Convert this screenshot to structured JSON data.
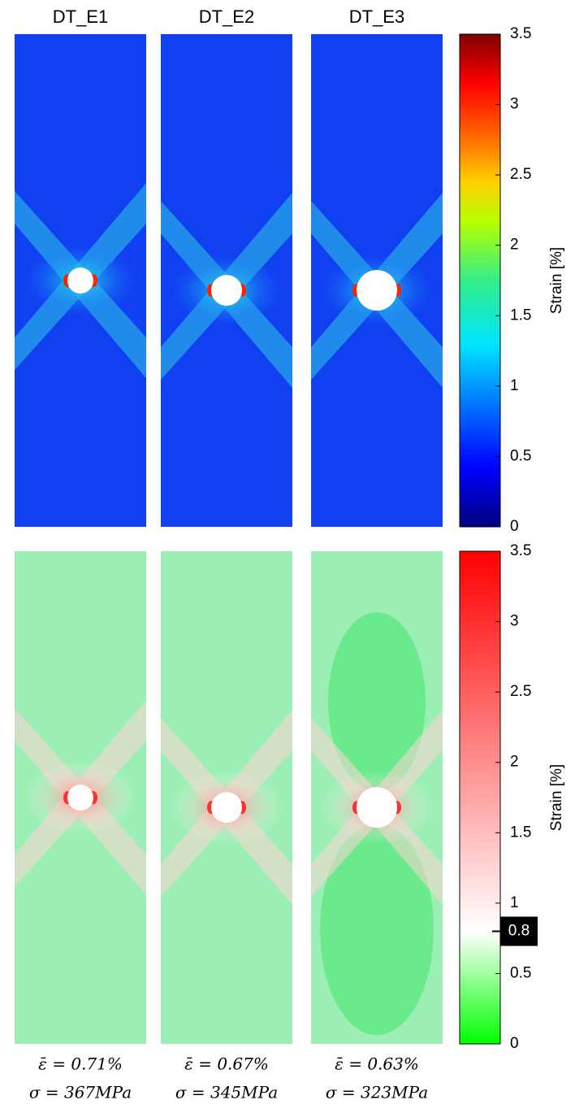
{
  "columns": [
    {
      "title": "DT_E1",
      "strain_text": "ε̄ = 0.71%",
      "stress_text": "σ = 367MPa"
    },
    {
      "title": "DT_E2",
      "strain_text": "ε̄ = 0.67%",
      "stress_text": "σ = 345MPa"
    },
    {
      "title": "DT_E3",
      "strain_text": "ε̄ = 0.63%",
      "stress_text": "σ = 323MPa"
    }
  ],
  "colorbars": [
    {
      "label": "Strain [%]",
      "lim": [
        0,
        3.5
      ],
      "ticks": [
        0,
        0.5,
        1,
        1.5,
        2,
        2.5,
        3,
        3.5
      ]
    },
    {
      "label": "Strain [%]",
      "lim": [
        0,
        3.5
      ],
      "ticks": [
        0,
        0.5,
        1,
        1.5,
        2,
        2.5,
        3,
        3.5
      ],
      "marker": 0.8
    }
  ]
}
